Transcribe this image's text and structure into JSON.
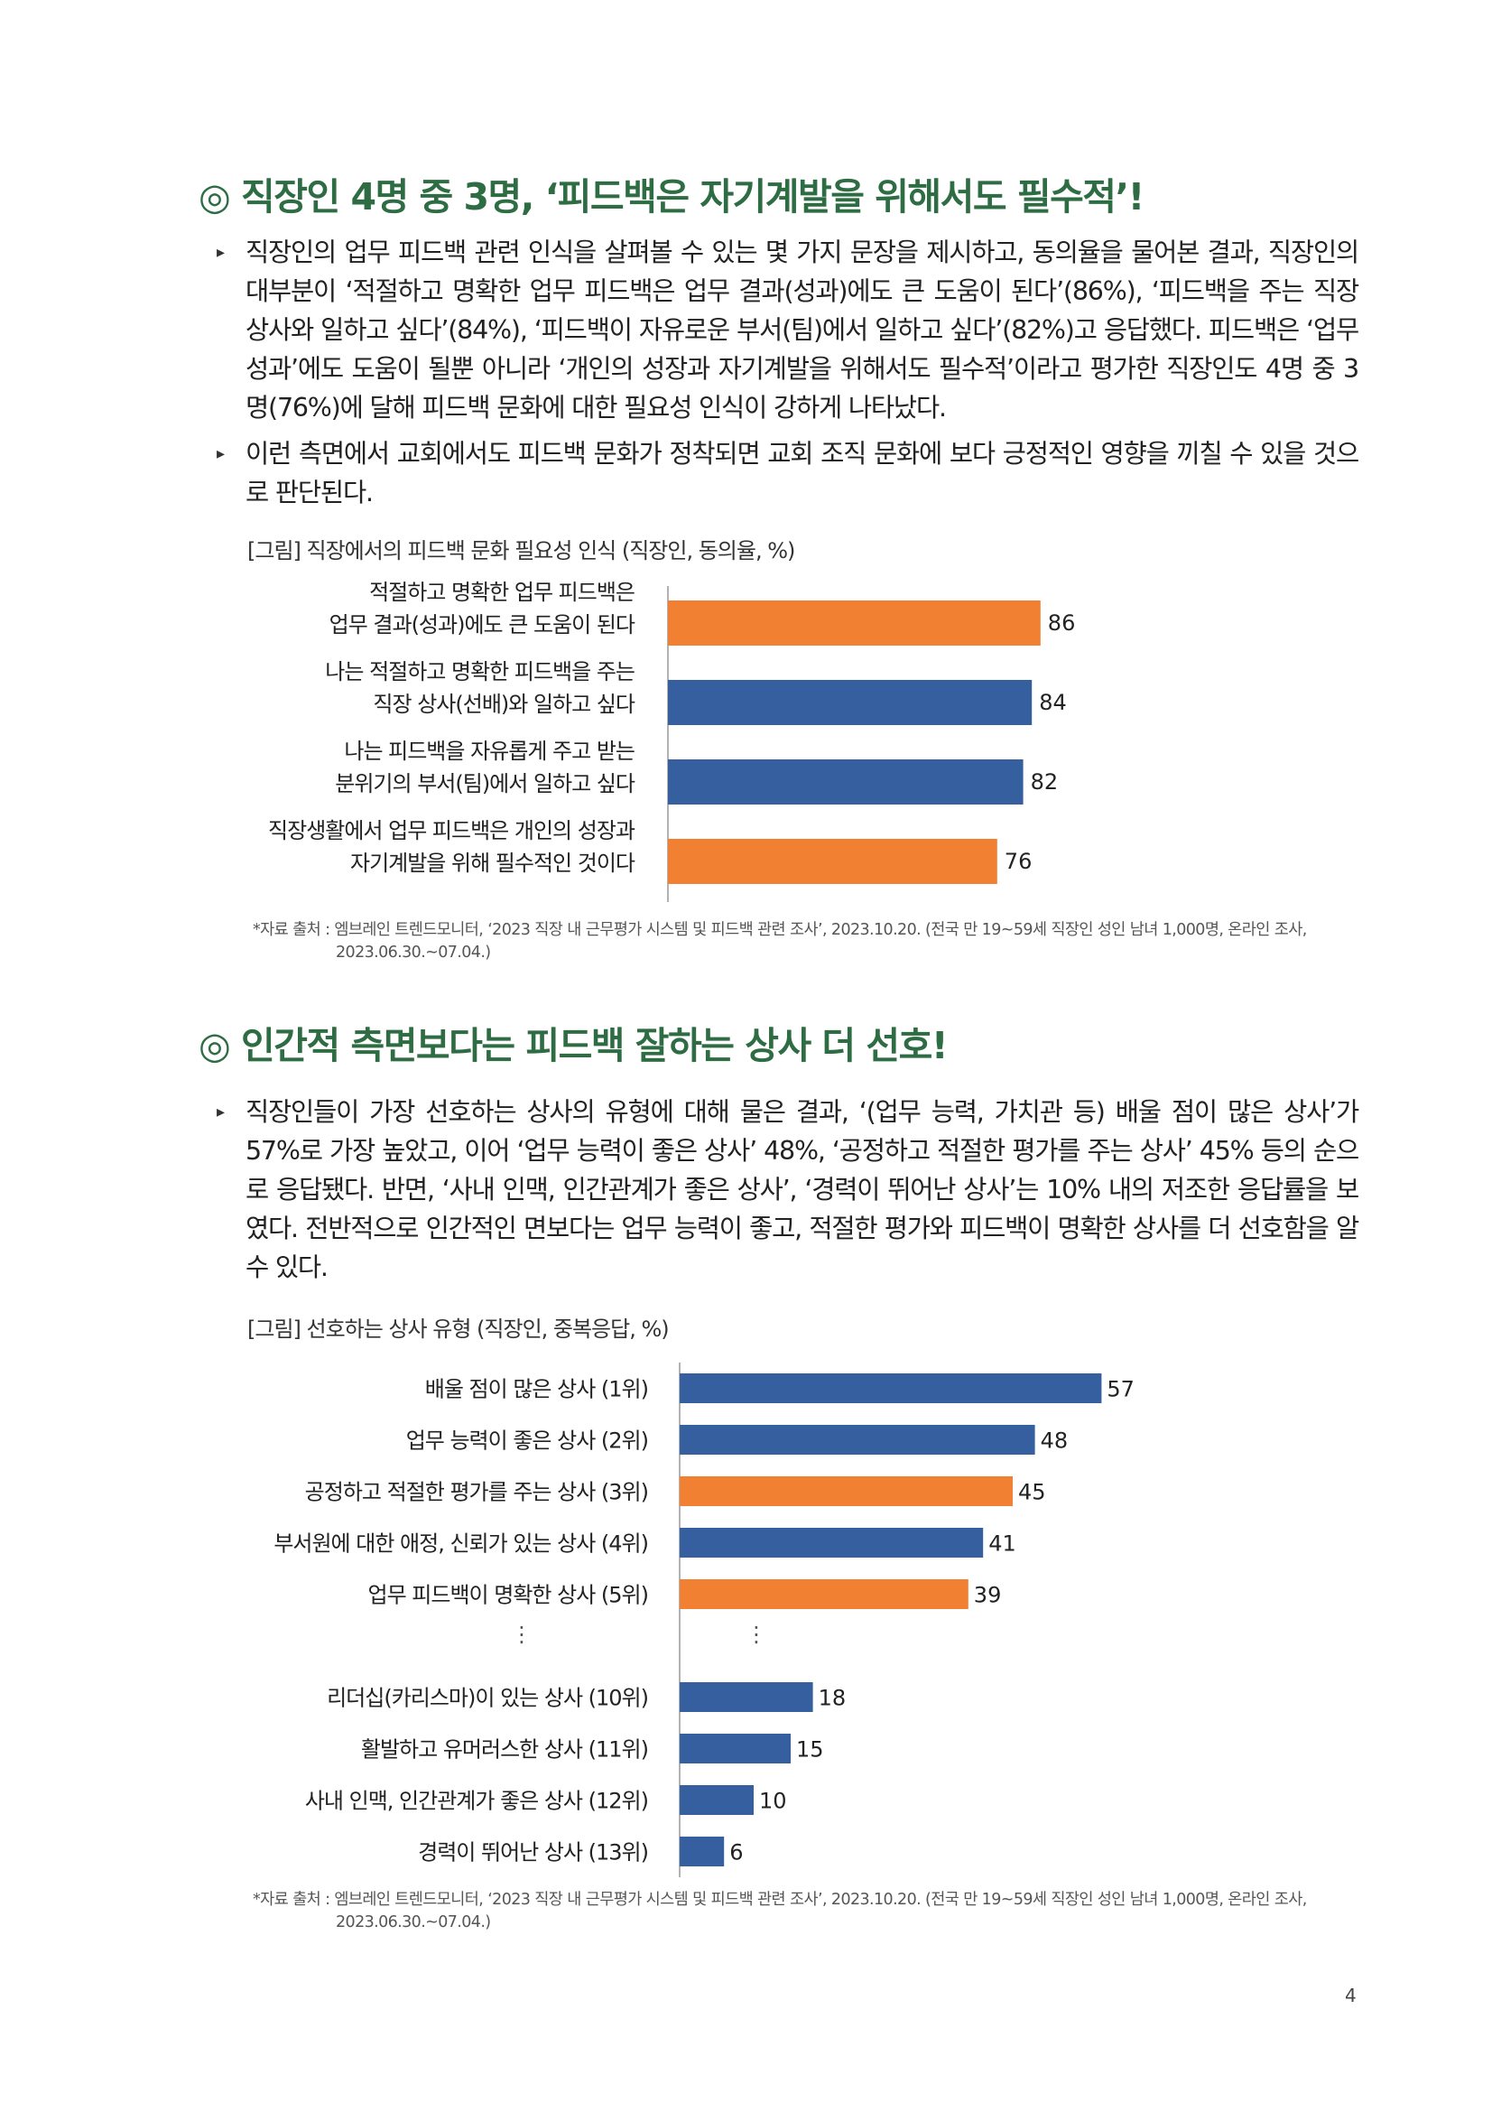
{
  "section1": {
    "title": "◎ 직장인 4명 중 3명, ‘피드백은 자기계발을 위해서도 필수적’!",
    "bullets": [
      "직장인의 업무 피드백 관련 인식을 살펴볼 수 있는 몇 가지 문장을 제시하고, 동의율을 물어본 결과, 직장인의 대부분이 ‘적절하고 명확한 업무 피드백은 업무 결과(성과)에도 큰 도움이 된다’(86%), ‘피드백을 주는 직장 상사와 일하고 싶다’(84%), ‘피드백이 자유로운 부서(팀)에서 일하고 싶다’(82%)고 응답했다. 피드백은 ‘업무 성과’에도 도움이 될뿐 아니라 ‘개인의 성장과 자기계발을 위해서도 필수적’이라고 평가한 직장인도 4명 중 3명(76%)에 달해 피드백 문화에 대한 필요성 인식이 강하게 나타났다.",
      "이런 측면에서 교회에서도 피드백 문화가 정착되면 교회 조직 문화에 보다 긍정적인 영향을 끼칠 수 있을 것으로 판단된다."
    ],
    "figure_caption": "[그림] 직장에서의 피드백 문화 필요성 인식 (직장인, 동의율, %)",
    "source_line1": "*자료 출처 : 엠브레인 트렌드모니터, ‘2023 직장 내 근무평가 시스템 및 피드백 관련 조사’, 2023.10.20. (전국 만 19~59세 직장인 성인 남녀 1,000명, 온라인 조사,",
    "source_line2": "2023.06.30.~07.04.)"
  },
  "section2": {
    "title": "◎ 인간적 측면보다는 피드백 잘하는 상사 더 선호!",
    "bullets": [
      "직장인들이 가장 선호하는 상사의 유형에 대해 물은 결과, ‘(업무 능력, 가치관 등) 배울 점이 많은 상사’가 57%로 가장 높았고, 이어 ‘업무 능력이 좋은 상사’ 48%, ‘공정하고 적절한 평가를 주는 상사’ 45% 등의 순으로 응답됐다. 반면, ‘사내 인맥, 인간관계가 좋은 상사’, ‘경력이 뛰어난 상사’는 10% 내의 저조한 응답률을 보였다. 전반적으로 인간적인 면보다는 업무 능력이 좋고, 적절한 평가와 피드백이 명확한 상사를 더 선호함을 알 수 있다."
    ],
    "figure_caption": "[그림] 선호하는 상사 유형 (직장인, 중복응답, %)",
    "source_line1": "*자료 출처 : 엠브레인 트렌드모니터, ‘2023 직장 내 근무평가 시스템 및 피드백 관련 조사’, 2023.10.20. (전국 만 19~59세 직장인 성인 남녀 1,000명, 온라인 조사,",
    "source_line2": "2023.06.30.~07.04.)"
  },
  "colors": {
    "title": "#2e6d43",
    "blue": "#355f9e",
    "orange": "#f28033",
    "axis": "#999999"
  },
  "page_number": "4",
  "chart_data": [
    {
      "type": "bar",
      "orientation": "horizontal",
      "categories": [
        [
          "적절하고 명확한 업무 피드백은",
          "업무 결과(성과)에도 큰 도움이 된다"
        ],
        [
          "나는 적절하고 명확한 피드백을 주는",
          "직장 상사(선배)와 일하고 싶다"
        ],
        [
          "나는 피드백을 자유롭게 주고 받는",
          "분위기의 부서(팀)에서 일하고 싶다"
        ],
        [
          "직장생활에서 업무 피드백은 개인의 성장과",
          "자기계발을 위해 필수적인 것이다"
        ]
      ],
      "values": [
        86,
        84,
        82,
        76
      ],
      "value_labels": [
        "86",
        "84",
        "82",
        "76"
      ],
      "bar_colors": [
        "orange",
        "blue",
        "blue",
        "orange"
      ],
      "xlim": [
        0,
        100
      ]
    },
    {
      "type": "bar",
      "orientation": "horizontal",
      "categories": [
        "배울 점이 많은 상사 (1위)",
        "업무 능력이 좋은 상사 (2위)",
        "공정하고 적절한 평가를 주는 상사 (3위)",
        "부서원에 대한 애정, 신뢰가 있는 상사 (4위)",
        "업무 피드백이 명확한 상사 (5위)",
        "리더십(카리스마)이 있는 상사 (10위)",
        "활발하고 유머러스한 상사 (11위)",
        "사내 인맥, 인간관계가 좋은 상사 (12위)",
        "경력이 뛰어난 상사 (13위)"
      ],
      "values": [
        57,
        48,
        45,
        41,
        39,
        18,
        15,
        10,
        6
      ],
      "value_labels": [
        "57",
        "48",
        "45",
        "41",
        "39",
        "18",
        "15",
        "10",
        "6"
      ],
      "bar_colors": [
        "blue",
        "blue",
        "orange",
        "blue",
        "orange",
        "blue",
        "blue",
        "blue",
        "blue"
      ],
      "gap_marker": "⋮",
      "gap_after_index": 4,
      "xlim": [
        0,
        100
      ]
    }
  ]
}
